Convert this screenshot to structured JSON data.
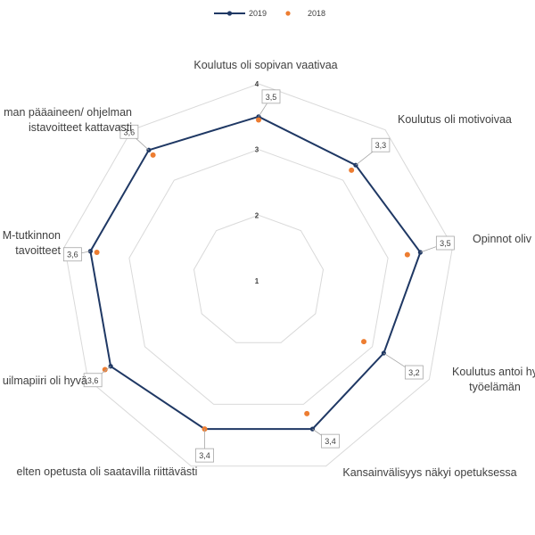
{
  "chart_data": {
    "type": "radar",
    "r_min": 1,
    "r_max": 4,
    "ticks": [
      "1",
      "2",
      "3",
      "4"
    ],
    "categories": [
      "Koulutus oli sopivan vaativaa",
      "Koulutus oli motivoivaa",
      "Opinnot oliv",
      "Koulutus antoi hy\ntyöelämän",
      "Kansainvälisyys näkyi opetuksessa",
      "elten opetusta oli saatavilla riittävästi",
      "uilmapiiri oli hyvä",
      "M-tutkinnon\ntavoitteet",
      "man pääaineen/ ohjelman\nistavoitteet kattavasti"
    ],
    "series": [
      {
        "name": "2019",
        "color": "#1f3864",
        "values": [
          3.5,
          3.3,
          3.5,
          3.2,
          3.4,
          3.4,
          3.6,
          3.6,
          3.6
        ],
        "labels": [
          "3,5",
          "3,3",
          "3,5",
          "3,2",
          "3,4",
          "3,4",
          "3,6",
          "3,6",
          "3,6"
        ]
      },
      {
        "name": "2018",
        "color": "#ed7d31",
        "values": [
          3.45,
          3.2,
          3.3,
          2.85,
          3.15,
          3.4,
          3.7,
          3.5,
          3.5
        ]
      }
    ],
    "legend": "top"
  }
}
